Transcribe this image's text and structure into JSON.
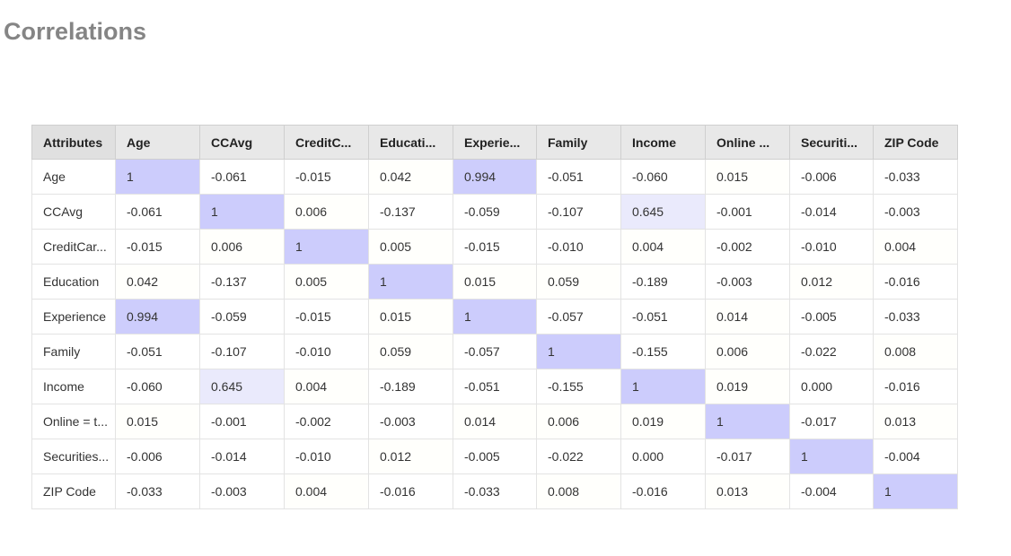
{
  "page": {
    "title": "Correlations"
  },
  "table": {
    "corner_label": "Attributes",
    "columns": [
      "Age",
      "CCAvg",
      "CreditC...",
      "Educati...",
      "Experie...",
      "Family",
      "Income",
      "Online ...",
      "Securiti...",
      "ZIP Code"
    ],
    "rows": [
      {
        "label": "Age",
        "values": [
          "1",
          "-0.061",
          "-0.015",
          "0.042",
          "0.994",
          "-0.051",
          "-0.060",
          "0.015",
          "-0.006",
          "-0.033"
        ],
        "num": [
          1,
          -0.061,
          -0.015,
          0.042,
          0.994,
          -0.051,
          -0.06,
          0.015,
          -0.006,
          -0.033
        ]
      },
      {
        "label": "CCAvg",
        "values": [
          "-0.061",
          "1",
          "0.006",
          "-0.137",
          "-0.059",
          "-0.107",
          "0.645",
          "-0.001",
          "-0.014",
          "-0.003"
        ],
        "num": [
          -0.061,
          1,
          0.006,
          -0.137,
          -0.059,
          -0.107,
          0.645,
          -0.001,
          -0.014,
          -0.003
        ]
      },
      {
        "label": "CreditCar...",
        "values": [
          "-0.015",
          "0.006",
          "1",
          "0.005",
          "-0.015",
          "-0.010",
          "0.004",
          "-0.002",
          "-0.010",
          "0.004"
        ],
        "num": [
          -0.015,
          0.006,
          1,
          0.005,
          -0.015,
          -0.01,
          0.004,
          -0.002,
          -0.01,
          0.004
        ]
      },
      {
        "label": "Education",
        "values": [
          "0.042",
          "-0.137",
          "0.005",
          "1",
          "0.015",
          "0.059",
          "-0.189",
          "-0.003",
          "0.012",
          "-0.016"
        ],
        "num": [
          0.042,
          -0.137,
          0.005,
          1,
          0.015,
          0.059,
          -0.189,
          -0.003,
          0.012,
          -0.016
        ]
      },
      {
        "label": "Experience",
        "values": [
          "0.994",
          "-0.059",
          "-0.015",
          "0.015",
          "1",
          "-0.057",
          "-0.051",
          "0.014",
          "-0.005",
          "-0.033"
        ],
        "num": [
          0.994,
          -0.059,
          -0.015,
          0.015,
          1,
          -0.057,
          -0.051,
          0.014,
          -0.005,
          -0.033
        ]
      },
      {
        "label": "Family",
        "values": [
          "-0.051",
          "-0.107",
          "-0.010",
          "0.059",
          "-0.057",
          "1",
          "-0.155",
          "0.006",
          "-0.022",
          "0.008"
        ],
        "num": [
          -0.051,
          -0.107,
          -0.01,
          0.059,
          -0.057,
          1,
          -0.155,
          0.006,
          -0.022,
          0.008
        ]
      },
      {
        "label": "Income",
        "values": [
          "-0.060",
          "0.645",
          "0.004",
          "-0.189",
          "-0.051",
          "-0.155",
          "1",
          "0.019",
          "0.000",
          "-0.016"
        ],
        "num": [
          -0.06,
          0.645,
          0.004,
          -0.189,
          -0.051,
          -0.155,
          1,
          0.019,
          0.0,
          -0.016
        ]
      },
      {
        "label": "Online = t...",
        "values": [
          "0.015",
          "-0.001",
          "-0.002",
          "-0.003",
          "0.014",
          "0.006",
          "0.019",
          "1",
          "-0.017",
          "0.013"
        ],
        "num": [
          0.015,
          -0.001,
          -0.002,
          -0.003,
          0.014,
          0.006,
          0.019,
          1,
          -0.017,
          0.013
        ]
      },
      {
        "label": "Securities...",
        "values": [
          "-0.006",
          "-0.014",
          "-0.010",
          "0.012",
          "-0.005",
          "-0.022",
          "0.000",
          "-0.017",
          "1",
          "-0.004"
        ],
        "num": [
          -0.006,
          -0.014,
          -0.01,
          0.012,
          -0.005,
          -0.022,
          0.0,
          -0.017,
          1,
          -0.004
        ]
      },
      {
        "label": "ZIP Code",
        "values": [
          "-0.033",
          "-0.003",
          "0.004",
          "-0.016",
          "-0.033",
          "0.008",
          "-0.016",
          "0.013",
          "-0.004",
          "1"
        ],
        "num": [
          -0.033,
          -0.003,
          0.004,
          -0.016,
          -0.033,
          0.008,
          -0.016,
          0.013,
          -0.004,
          1
        ]
      }
    ]
  },
  "colors": {
    "title": "#858585",
    "highlight": "#ccccfc",
    "header_bg": "#e8e8e8"
  }
}
